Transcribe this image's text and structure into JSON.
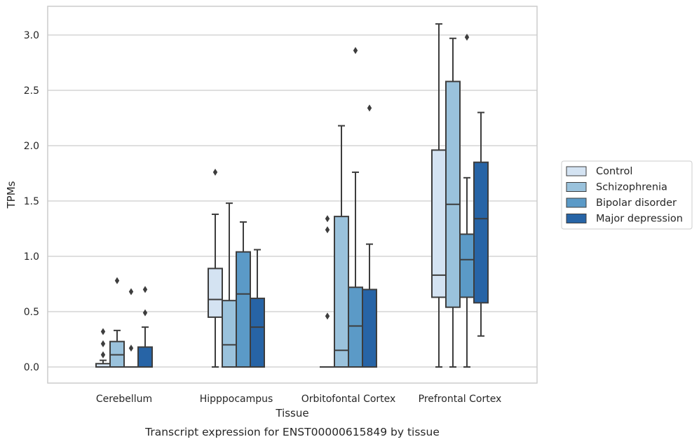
{
  "chart_data": {
    "type": "box",
    "title": "",
    "caption": "Transcript expression for ENST00000615849 by tissue",
    "xlabel": "Tissue",
    "ylabel": "TPMs",
    "ylim": [
      -0.15,
      3.25
    ],
    "yticks": [
      "0.0",
      "0.5",
      "1.0",
      "1.5",
      "2.0",
      "2.5",
      "3.0"
    ],
    "grid": "horizontal",
    "legend_placement": "right",
    "categories": [
      "Cerebellum",
      "Hipppocampus",
      "Orbitofontal Cortex",
      "Prefrontal Cortex"
    ],
    "series": [
      {
        "name": "Control",
        "color": "#d4e3f2",
        "boxes": [
          {
            "whislo": 0.0,
            "q1": 0.0,
            "med": 0.0,
            "q3": 0.03,
            "whishi": 0.06,
            "fliers": [
              0.11,
              0.21,
              0.32
            ]
          },
          {
            "whislo": 0.0,
            "q1": 0.45,
            "med": 0.61,
            "q3": 0.89,
            "whishi": 1.38,
            "fliers": [
              1.76
            ]
          },
          {
            "whislo": 0.0,
            "q1": 0.0,
            "med": 0.0,
            "q3": 0.0,
            "whishi": 0.0,
            "fliers": [
              0.46,
              1.24,
              1.34
            ]
          },
          {
            "whislo": 0.0,
            "q1": 0.63,
            "med": 0.83,
            "q3": 1.96,
            "whishi": 3.1,
            "fliers": []
          }
        ]
      },
      {
        "name": "Schizophrenia",
        "color": "#9ac2dc",
        "boxes": [
          {
            "whislo": 0.0,
            "q1": 0.0,
            "med": 0.11,
            "q3": 0.23,
            "whishi": 0.33,
            "fliers": [
              0.78
            ]
          },
          {
            "whislo": 0.0,
            "q1": 0.0,
            "med": 0.2,
            "q3": 0.6,
            "whishi": 1.48,
            "fliers": []
          },
          {
            "whislo": 0.0,
            "q1": 0.0,
            "med": 0.15,
            "q3": 1.36,
            "whishi": 2.18,
            "fliers": []
          },
          {
            "whislo": 0.0,
            "q1": 0.54,
            "med": 1.47,
            "q3": 2.58,
            "whishi": 2.97,
            "fliers": []
          }
        ]
      },
      {
        "name": "Bipolar disorder",
        "color": "#5b9ac7",
        "boxes": [
          {
            "whislo": 0.0,
            "q1": 0.0,
            "med": 0.0,
            "q3": 0.0,
            "whishi": 0.0,
            "fliers": [
              0.17,
              0.68
            ]
          },
          {
            "whislo": 0.0,
            "q1": 0.0,
            "med": 0.66,
            "q3": 1.04,
            "whishi": 1.31,
            "fliers": []
          },
          {
            "whislo": 0.0,
            "q1": 0.0,
            "med": 0.37,
            "q3": 0.72,
            "whishi": 1.76,
            "fliers": [
              2.86
            ]
          },
          {
            "whislo": 0.0,
            "q1": 0.63,
            "med": 0.97,
            "q3": 1.2,
            "whishi": 1.71,
            "fliers": [
              2.98
            ]
          }
        ]
      },
      {
        "name": "Major depression",
        "color": "#2764a6",
        "boxes": [
          {
            "whislo": 0.0,
            "q1": 0.0,
            "med": 0.0,
            "q3": 0.18,
            "whishi": 0.36,
            "fliers": [
              0.49,
              0.7
            ]
          },
          {
            "whislo": 0.0,
            "q1": 0.0,
            "med": 0.36,
            "q3": 0.62,
            "whishi": 1.06,
            "fliers": []
          },
          {
            "whislo": 0.0,
            "q1": 0.0,
            "med": 0.0,
            "q3": 0.7,
            "whishi": 1.11,
            "fliers": [
              2.34
            ]
          },
          {
            "whislo": 0.28,
            "q1": 0.58,
            "med": 1.34,
            "q3": 1.85,
            "whishi": 2.3,
            "fliers": []
          }
        ]
      }
    ]
  }
}
